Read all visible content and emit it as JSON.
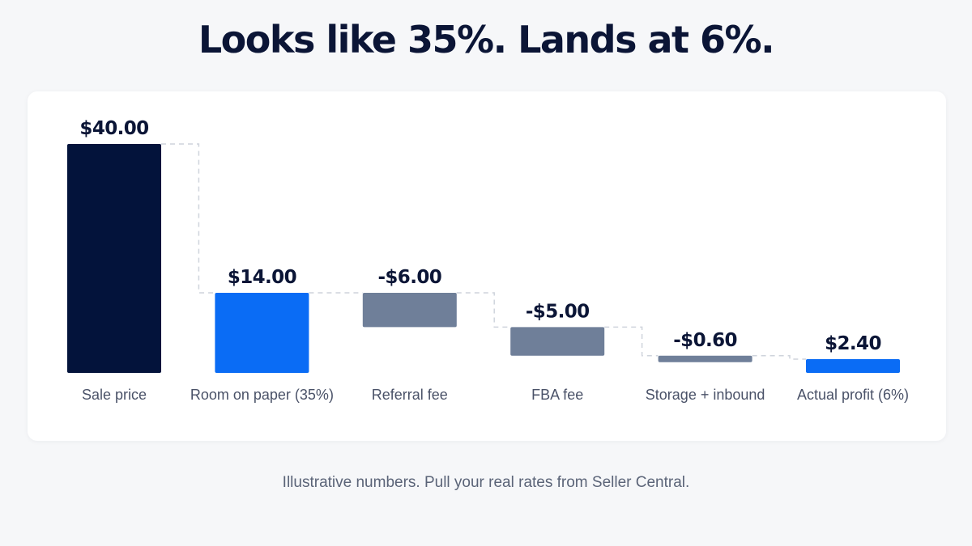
{
  "header": {
    "title": "Looks like 35%. Lands at 6%."
  },
  "footer": {
    "note": "Illustrative numbers. Pull your real rates from Seller Central."
  },
  "colors": {
    "total": "#03133b",
    "highlight": "#0a6cf5",
    "cost": "#6f7f99",
    "connector": "#cfd4dc",
    "text": "#0b1536",
    "muted": "#4a5268"
  },
  "chart_data": {
    "type": "bar",
    "subtype": "waterfall",
    "categories": [
      "Sale price",
      "Room on paper (35%)",
      "Referral fee",
      "FBA fee",
      "Storage + inbound",
      "Actual profit (6%)"
    ],
    "values": [
      40.0,
      14.0,
      -6.0,
      -5.0,
      -0.6,
      2.4
    ],
    "value_labels": [
      "$40.00",
      "$14.00",
      "-$6.00",
      "-$5.00",
      "-$0.60",
      "$2.40"
    ],
    "bar_kinds": [
      "total",
      "highlight",
      "cost",
      "cost",
      "cost",
      "highlight"
    ],
    "ylim": [
      0,
      40
    ],
    "grid": false,
    "connectors": true
  }
}
